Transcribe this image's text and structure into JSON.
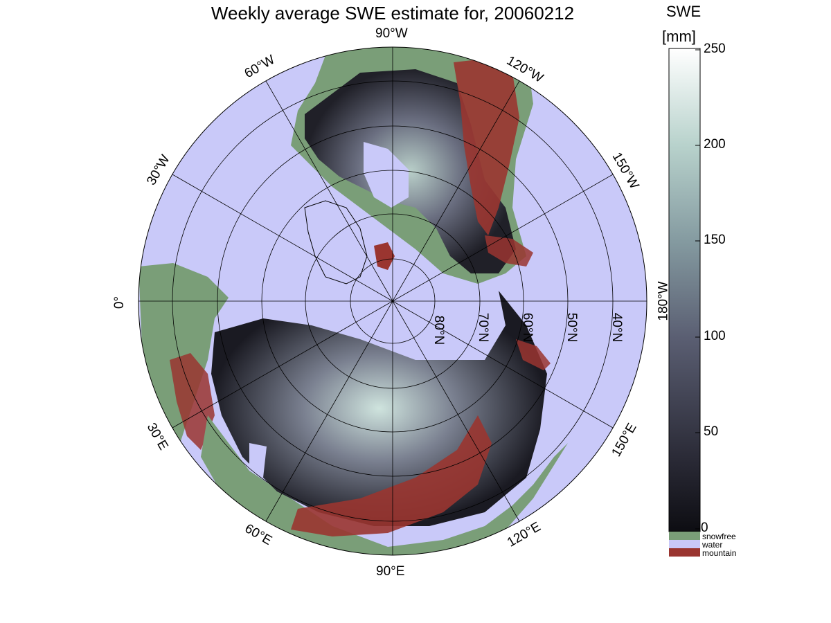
{
  "title": "Weekly average SWE estimate for, 20060212",
  "map": {
    "projection": "north-polar-stereographic",
    "colors": {
      "water": "#c9c9f9",
      "snowfree": "#7a9e78",
      "mountain": "#9a3530",
      "swe_low": "#0d0d12",
      "swe_mid": "#6b6f80",
      "swe_high": "#c0d8d4",
      "swe_max": "#ffffff"
    },
    "longitude_labels": [
      "90°W",
      "60°W",
      "30°W",
      "0°",
      "30°E",
      "60°E",
      "90°E",
      "120°E",
      "150°E",
      "180°W",
      "150°W",
      "120°W"
    ],
    "latitude_labels": [
      "80°N",
      "70°N",
      "60°N",
      "50°N",
      "40°N"
    ]
  },
  "colorbar": {
    "label_top": "SWE",
    "label_unit": "[mm]",
    "ticks": [
      "250",
      "200",
      "150",
      "100",
      "50",
      "0"
    ],
    "range": [
      0,
      250
    ],
    "legend": [
      {
        "label": "snowfree",
        "color": "#7a9e78"
      },
      {
        "label": "water",
        "color": "#c9c9f9"
      },
      {
        "label": "mountain",
        "color": "#9a3530"
      }
    ]
  }
}
